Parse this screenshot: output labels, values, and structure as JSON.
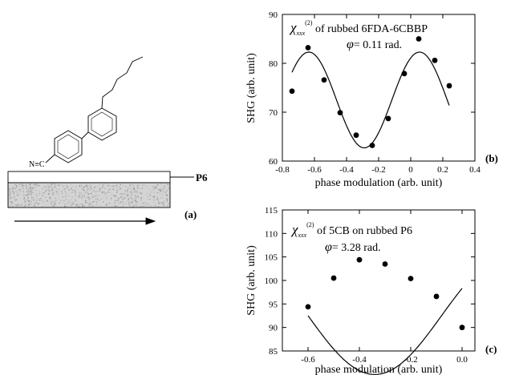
{
  "diagram": {
    "panel_label": "(a)",
    "layer_label": "P6",
    "group_label": "N≡C"
  },
  "chart_data": [
    {
      "type": "scatter",
      "panel_label": "(b)",
      "annotation_chi": "χ",
      "annotation_sub": "xxx",
      "annotation_sup": "(2)",
      "annotation_line1_rest": "of rubbed 6FDA-6CBBP",
      "annotation_phi": "φ",
      "annotation_line2_rest": "= 0.11 rad.",
      "xlabel": "phase modulation (arb. unit)",
      "ylabel": "SHG (arb. unit)",
      "xlim": [
        -0.8,
        0.4
      ],
      "ylim": [
        60,
        90
      ],
      "xticks": [
        -0.8,
        -0.6,
        -0.4,
        -0.2,
        0,
        0.2,
        0.4
      ],
      "xtick_labels": [
        "-0.8",
        "-0.6",
        "-0.4",
        "-0.2",
        "0",
        "0.2",
        "0.4"
      ],
      "yticks": [
        60,
        70,
        80,
        90
      ],
      "ytick_labels": [
        "60",
        "70",
        "80",
        "90"
      ],
      "points": [
        {
          "x": -0.74,
          "y": 74.3
        },
        {
          "x": -0.64,
          "y": 83.2
        },
        {
          "x": -0.54,
          "y": 76.6
        },
        {
          "x": -0.44,
          "y": 69.9
        },
        {
          "x": -0.34,
          "y": 65.3
        },
        {
          "x": -0.24,
          "y": 63.2
        },
        {
          "x": -0.14,
          "y": 68.7
        },
        {
          "x": -0.04,
          "y": 77.9
        },
        {
          "x": 0.05,
          "y": 85.0
        },
        {
          "x": 0.15,
          "y": 80.6
        },
        {
          "x": 0.24,
          "y": 75.4
        }
      ],
      "fit": {
        "type": "cosine",
        "x_range": [
          -0.74,
          0.24
        ],
        "offset": 72.5,
        "amplitude": 9.8,
        "center_x": -0.29,
        "period": 0.69
      }
    },
    {
      "type": "scatter",
      "panel_label": "(c)",
      "annotation_chi": "χ",
      "annotation_sub": "xxx",
      "annotation_sup": "(2)",
      "annotation_line1_rest": "of 5CB on rubbed P6",
      "annotation_phi": "φ",
      "annotation_line2_rest": "= 3.28 rad.",
      "xlabel": "phase modulation (arb. unit)",
      "ylabel": "SHG (arb. unit)",
      "xlim": [
        -0.7,
        0.05
      ],
      "ylim": [
        85,
        115
      ],
      "xticks": [
        -0.6,
        -0.4,
        -0.2,
        0.0
      ],
      "xtick_labels": [
        "-0.6",
        "-0.4",
        "-0.2",
        "0.0"
      ],
      "yticks": [
        85,
        90,
        95,
        100,
        105,
        110,
        115
      ],
      "ytick_labels": [
        "85",
        "90",
        "95",
        "100",
        "105",
        "110",
        "115"
      ],
      "points": [
        {
          "x": -0.6,
          "y": 94.4
        },
        {
          "x": -0.5,
          "y": 100.5
        },
        {
          "x": -0.4,
          "y": 104.4
        },
        {
          "x": -0.3,
          "y": 103.5
        },
        {
          "x": -0.2,
          "y": 100.4
        },
        {
          "x": -0.1,
          "y": 96.6
        },
        {
          "x": 0.0,
          "y": 90.0
        }
      ],
      "fit": {
        "type": "cosine",
        "x_range": [
          -0.6,
          0.0
        ],
        "offset": 92.5,
        "amplitude": 12.5,
        "center_x": -0.34,
        "period": 1.04
      }
    }
  ]
}
